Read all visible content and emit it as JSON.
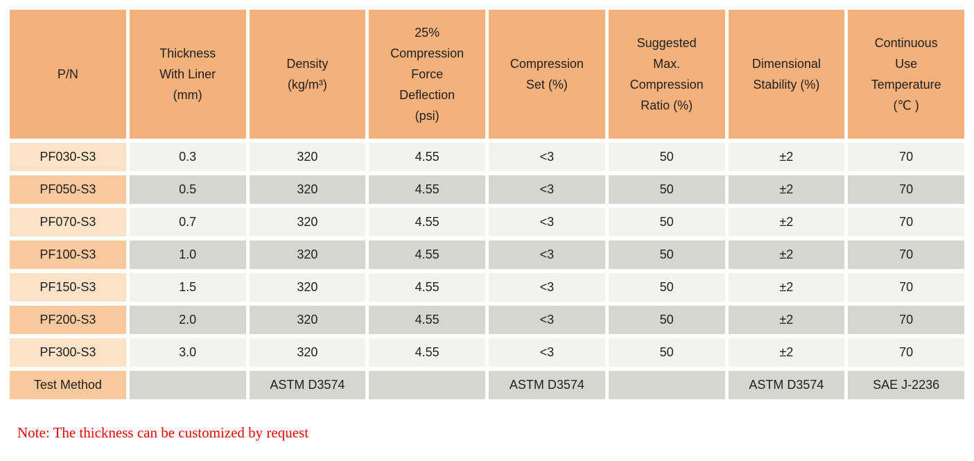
{
  "colors": {
    "header_orange": "#f4b17c",
    "row_orange_light": "#fce3c8",
    "row_orange_dark": "#f8c99c",
    "cell_gray_light": "#f2f2ee",
    "cell_gray_dark": "#d6d6d0",
    "note_red": "#e90000",
    "text": "#1f1f1f"
  },
  "table": {
    "columns": [
      {
        "label": "P/N"
      },
      {
        "label": "Thickness\nWith Liner\n(mm)"
      },
      {
        "label": "Density\n(kg/m³)"
      },
      {
        "label": "25%\nCompression\nForce\nDeflection\n(psi)"
      },
      {
        "label": "Compression\nSet (%)"
      },
      {
        "label": "Suggested\nMax.\nCompression\nRatio (%)"
      },
      {
        "label": "Dimensional\nStability (%)"
      },
      {
        "label": "Continuous\nUse\nTemperature\n(℃ )"
      }
    ],
    "rows": [
      {
        "pn": "PF030-S3",
        "values": [
          "0.3",
          "320",
          "4.55",
          "<3",
          "50",
          "±2",
          "70"
        ]
      },
      {
        "pn": "PF050-S3",
        "values": [
          "0.5",
          "320",
          "4.55",
          "<3",
          "50",
          "±2",
          "70"
        ]
      },
      {
        "pn": "PF070-S3",
        "values": [
          "0.7",
          "320",
          "4.55",
          "<3",
          "50",
          "±2",
          "70"
        ]
      },
      {
        "pn": "PF100-S3",
        "values": [
          "1.0",
          "320",
          "4.55",
          "<3",
          "50",
          "±2",
          "70"
        ]
      },
      {
        "pn": "PF150-S3",
        "values": [
          "1.5",
          "320",
          "4.55",
          "<3",
          "50",
          "±2",
          "70"
        ]
      },
      {
        "pn": "PF200-S3",
        "values": [
          "2.0",
          "320",
          "4.55",
          "<3",
          "50",
          "±2",
          "70"
        ]
      },
      {
        "pn": "PF300-S3",
        "values": [
          "3.0",
          "320",
          "4.55",
          "<3",
          "50",
          "±2",
          "70"
        ]
      }
    ],
    "footer": {
      "label": "Test Method",
      "values": [
        "",
        "ASTM D3574",
        "",
        "ASTM D3574",
        "",
        "ASTM D3574",
        "SAE J-2236"
      ]
    }
  },
  "note": "Note: The thickness can be customized by request"
}
